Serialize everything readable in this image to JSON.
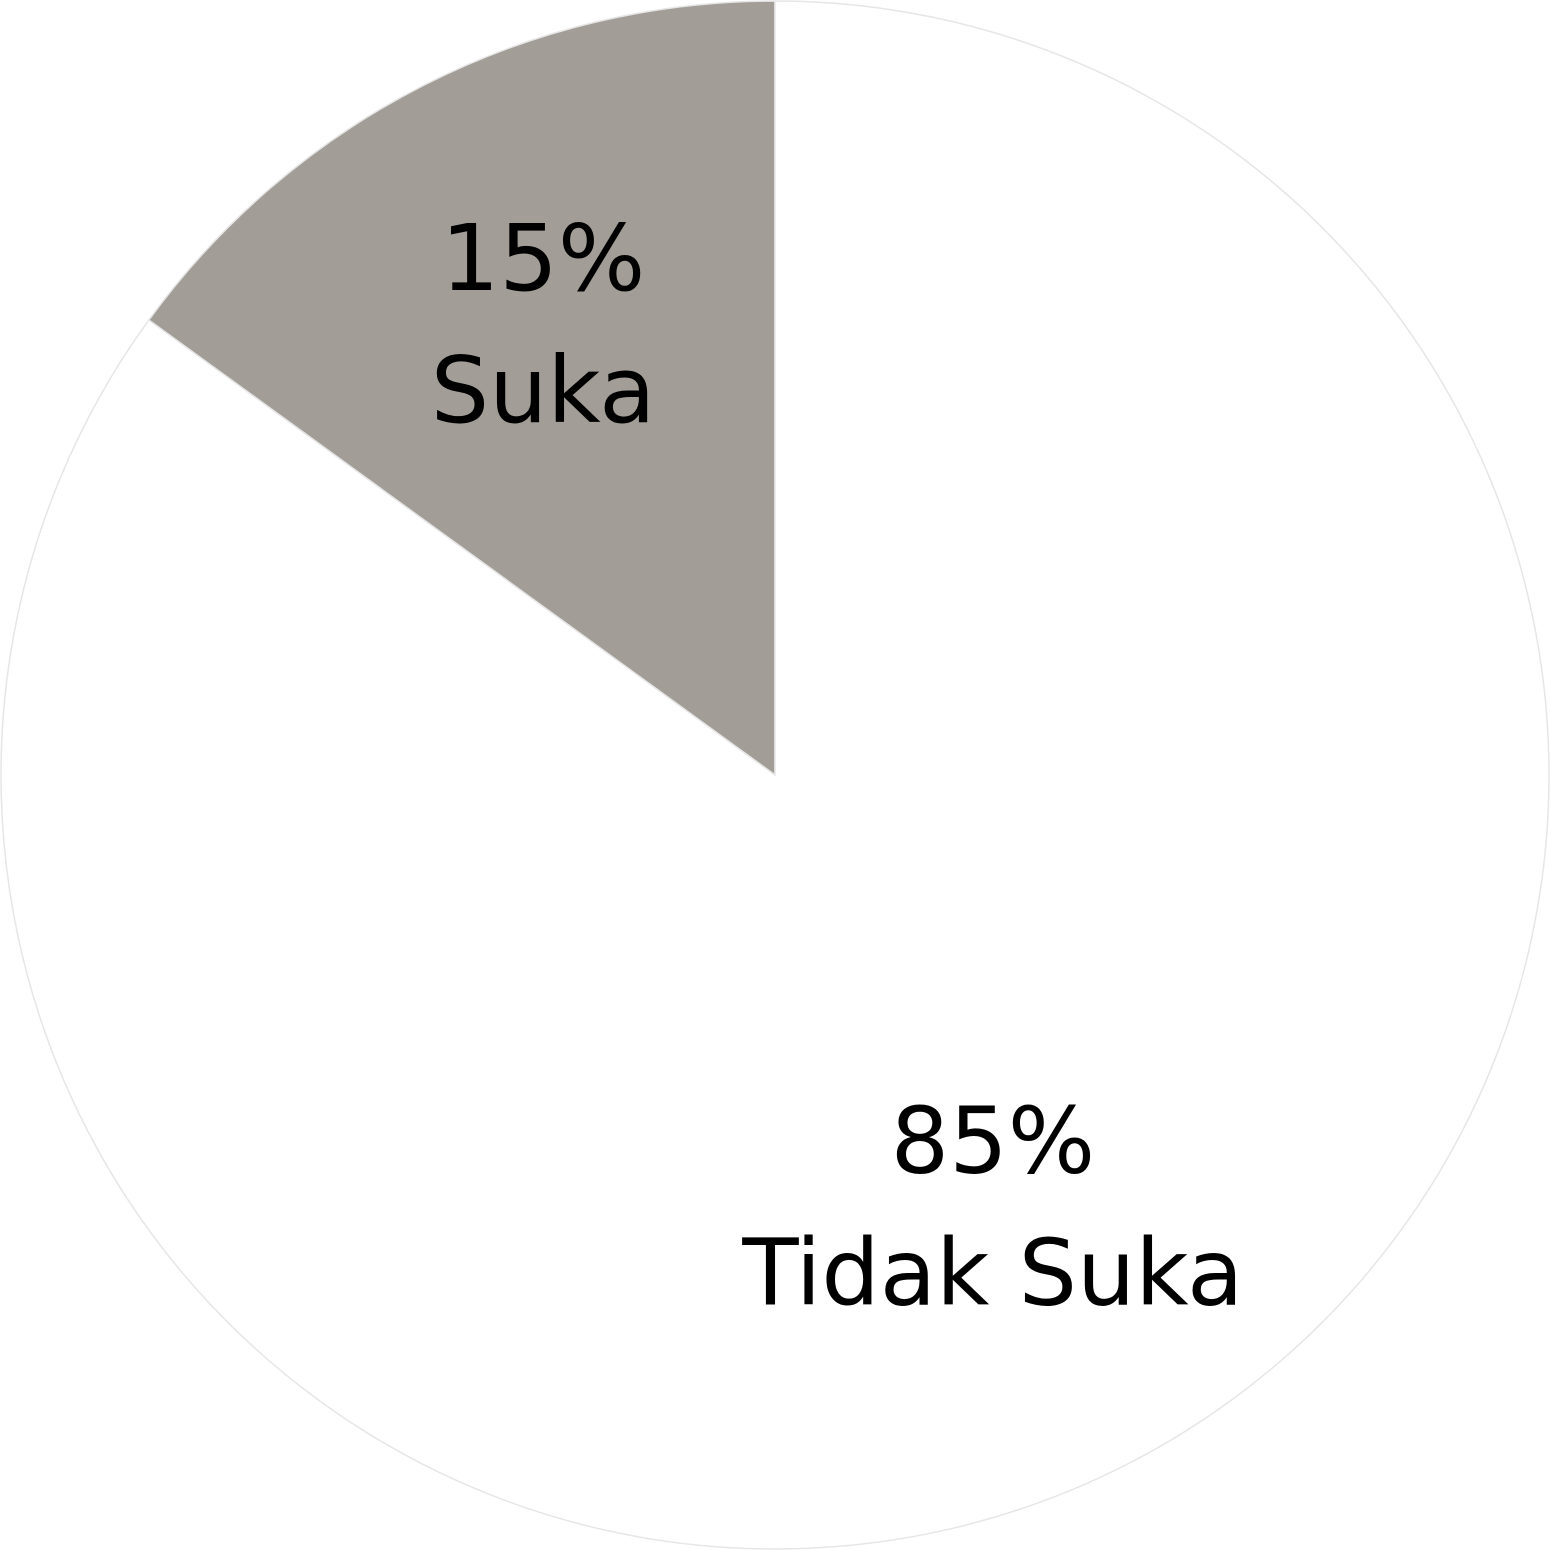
{
  "chart_data": {
    "type": "pie",
    "title": "",
    "start": "top",
    "direction": "counter-clockwise",
    "slices": [
      {
        "label": "Suka",
        "value": 15,
        "display": "15%",
        "color": "#a29e97"
      },
      {
        "label": "Tidak Suka",
        "value": 85,
        "display": "85%",
        "color": "#ffffff"
      }
    ],
    "stroke_color": "#e6e6e6"
  }
}
